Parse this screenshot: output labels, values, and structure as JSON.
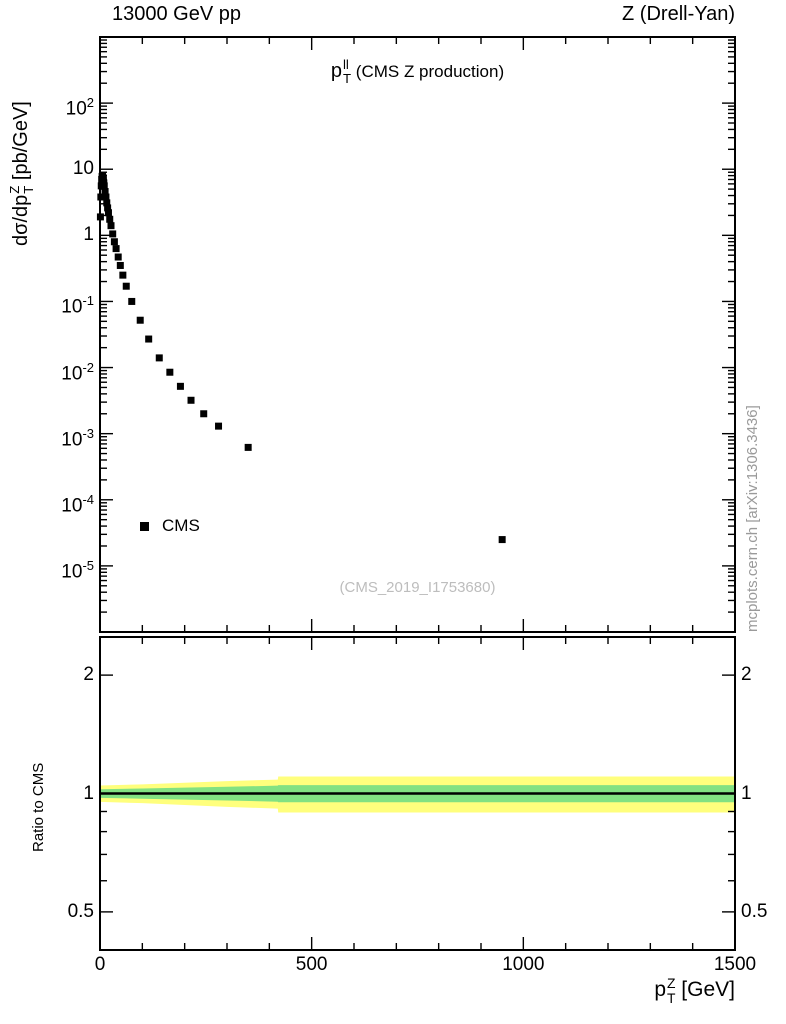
{
  "header": {
    "left": "13000 GeV pp",
    "right": "Z (Drell-Yan)"
  },
  "main_plot": {
    "title_base": "p",
    "title_sup": "ll",
    "title_sub": "T",
    "title_rest": " (CMS Z production)",
    "ylabel_prefix": "dσ/dp",
    "ylabel_sup": "Z",
    "ylabel_sub": "T",
    "ylabel_suffix": " [pb/GeV]",
    "watermark": "(CMS_2019_I1753680)",
    "legend": [
      {
        "label": "CMS",
        "marker": "filled-square"
      }
    ]
  },
  "ratio_plot": {
    "ylabel": "Ratio to CMS"
  },
  "xaxis": {
    "label_base": "p",
    "label_sup": "Z",
    "label_sub": "T",
    "label_suffix": " [GeV]"
  },
  "side_note": "mcplots.cern.ch [arXiv:1306.3436]",
  "colors": {
    "marker": "#000000",
    "band_outer": "#ffff7d",
    "band_inner": "#82e182",
    "ratio_line": "#000000",
    "watermark": "#bdbdbd",
    "side_note": "#9a9a9a",
    "frame": "#000000"
  },
  "chart_data": [
    {
      "type": "scatter",
      "title": "pT^ll (CMS Z production)",
      "xlabel": "pT^Z [GeV]",
      "ylabel": "dsigma/dpT^Z [pb/GeV]",
      "xscale": "linear",
      "yscale": "log",
      "xlim": [
        0,
        1500
      ],
      "ylim": [
        1e-06,
        1000
      ],
      "xticks": [
        0,
        500,
        1000,
        1500
      ],
      "xminor_step": 100,
      "ytick_exponents": [
        2,
        1,
        0,
        -1,
        -2,
        -3,
        -4,
        -5
      ],
      "grid": false,
      "legend_position": "lower-left",
      "series": [
        {
          "name": "CMS",
          "marker": "filled-square",
          "color": "#000000",
          "x": [
            1,
            2,
            3,
            4,
            5,
            6,
            7,
            8,
            9,
            10,
            12,
            14,
            16,
            18,
            20,
            23,
            26,
            30,
            34,
            38,
            43,
            48,
            54,
            62,
            75,
            95,
            115,
            140,
            165,
            190,
            215,
            245,
            280,
            350,
            950
          ],
          "y": [
            1.9,
            3.8,
            5.6,
            7.0,
            7.8,
            7.9,
            7.5,
            6.9,
            6.2,
            5.6,
            4.6,
            3.8,
            3.1,
            2.6,
            2.2,
            1.75,
            1.4,
            1.05,
            0.8,
            0.63,
            0.47,
            0.35,
            0.25,
            0.17,
            0.1,
            0.052,
            0.027,
            0.014,
            0.0085,
            0.0052,
            0.0032,
            0.002,
            0.0013,
            0.00062,
            2.5e-05
          ]
        }
      ]
    },
    {
      "type": "area",
      "ylabel": "Ratio to CMS",
      "xscale": "linear",
      "yscale": "log",
      "xlim": [
        0,
        1500
      ],
      "ylim": [
        0.4,
        2.5
      ],
      "yticks": [
        0.5,
        1,
        2
      ],
      "ytick_labels": [
        "0.5",
        "1",
        "2"
      ],
      "yminor_ticks": [
        0.4,
        0.6,
        0.7,
        0.8,
        0.9
      ],
      "reference_line_y": 1,
      "bands": {
        "x": [
          0,
          100,
          200,
          300,
          420,
          421,
          1500
        ],
        "outer_low": [
          0.952,
          0.945,
          0.935,
          0.925,
          0.915,
          0.895,
          0.895
        ],
        "outer_high": [
          1.048,
          1.055,
          1.065,
          1.075,
          1.085,
          1.105,
          1.105
        ],
        "inner_low": [
          0.975,
          0.97,
          0.965,
          0.96,
          0.953,
          0.95,
          0.95
        ],
        "inner_high": [
          1.025,
          1.03,
          1.035,
          1.04,
          1.047,
          1.05,
          1.05
        ]
      }
    }
  ]
}
